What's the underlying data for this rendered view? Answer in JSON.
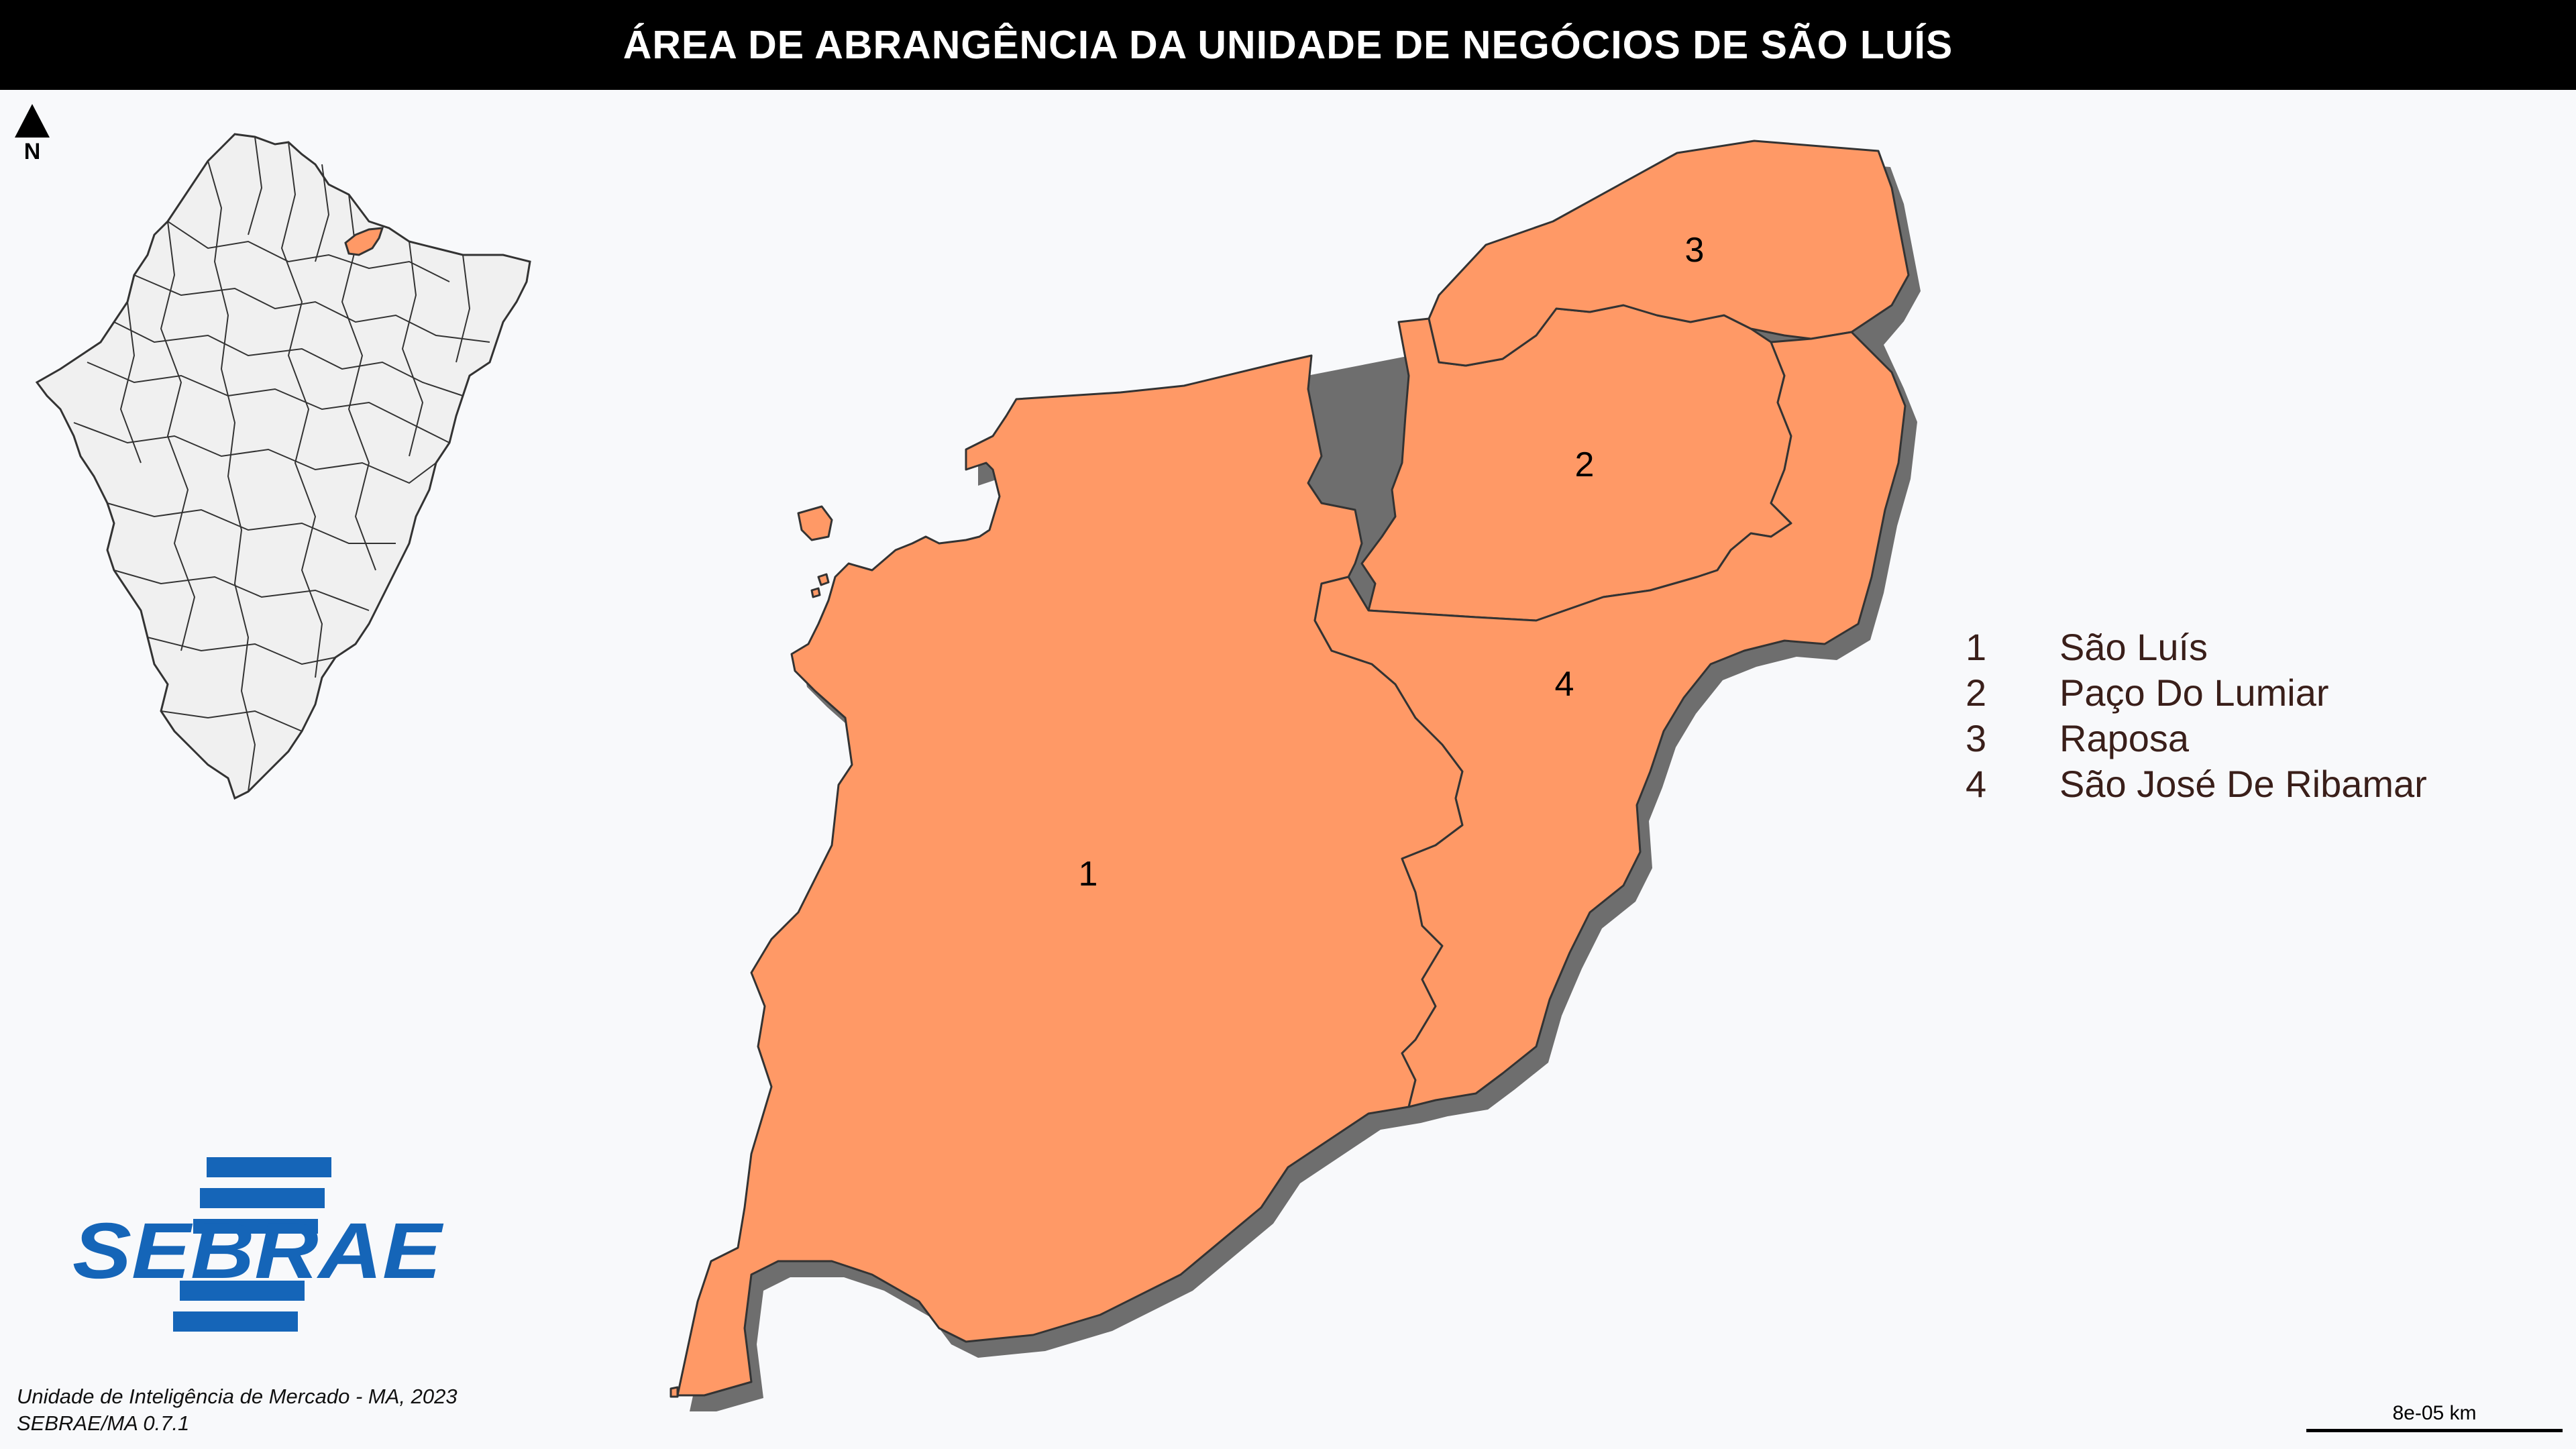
{
  "title": "ÁREA DE ABRANGÊNCIA DA UNIDADE DE NEGÓCIOS DE SÃO LUÍS",
  "north_label": "N",
  "colors": {
    "region_fill": "#ff9966",
    "region_stroke": "#333333",
    "shadow": "#6e6e6e",
    "inset_fill": "#f0f0f0",
    "sebrae_blue": "#1565b8",
    "title_bg": "#000000"
  },
  "regions": [
    {
      "id": "1",
      "name": "São Luís"
    },
    {
      "id": "2",
      "name": "Paço Do Lumiar"
    },
    {
      "id": "3",
      "name": "Raposa"
    },
    {
      "id": "4",
      "name": "São José De Ribamar"
    }
  ],
  "logo": {
    "text": "SEBRAE"
  },
  "credits": {
    "line1": "Unidade de Inteligência de Mercado - MA, 2023",
    "line2": "SEBRAE/MA 0.7.1"
  },
  "scale": {
    "label": "8e-05 km"
  }
}
